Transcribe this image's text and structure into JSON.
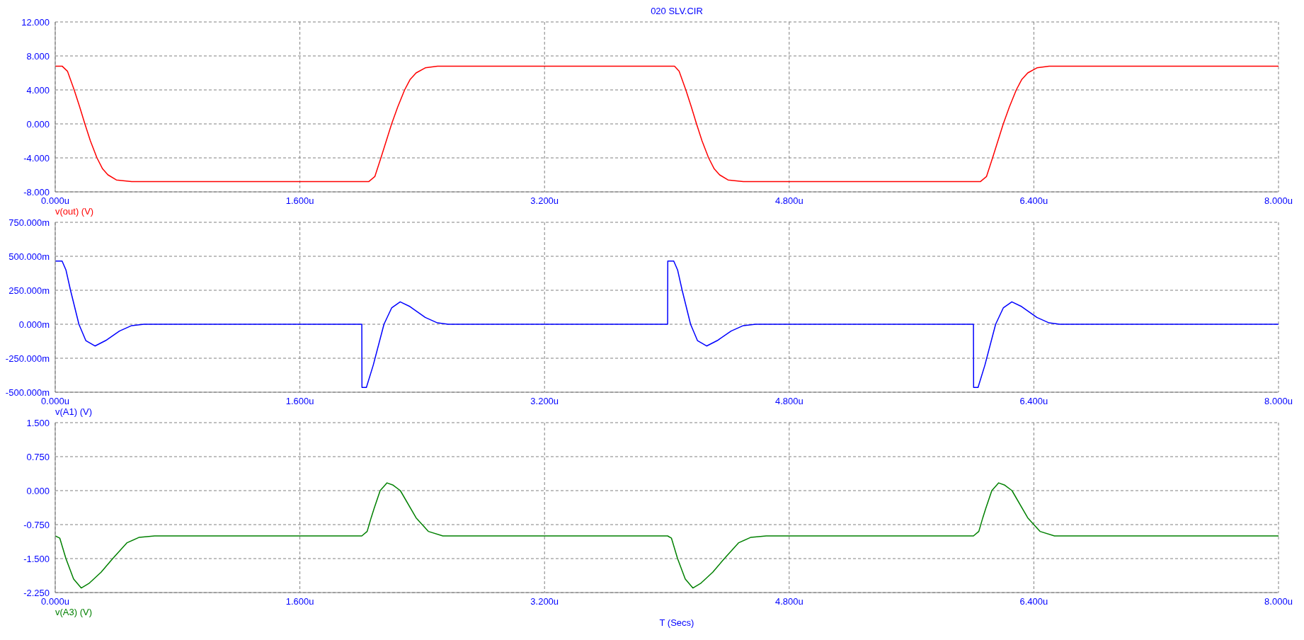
{
  "chart_data": [
    {
      "type": "line",
      "title": "020 SLV.CIR",
      "grid": true,
      "legend": "bottom left",
      "xlim": [
        0,
        8
      ],
      "xticks": [
        {
          "value": 0,
          "label": "0.000u"
        },
        {
          "value": 1.6,
          "label": "1.600u"
        },
        {
          "value": 3.2,
          "label": "3.200u"
        },
        {
          "value": 4.8,
          "label": "4.800u"
        },
        {
          "value": 6.4,
          "label": "6.400u"
        },
        {
          "value": 8,
          "label": "8.000u"
        }
      ],
      "ylim": [
        -8,
        12
      ],
      "yticks": [
        {
          "value": -8,
          "label": "-8.000"
        },
        {
          "value": -4,
          "label": "-4.000"
        },
        {
          "value": 0,
          "label": "0.000"
        },
        {
          "value": 4,
          "label": "4.000"
        },
        {
          "value": 8,
          "label": "8.000"
        },
        {
          "value": 12,
          "label": "12.000"
        }
      ],
      "series": [
        {
          "name": "v(out) (V)",
          "color": "#ff0000",
          "x": [
            0,
            0.045,
            0.08,
            0.124,
            0.16,
            0.194,
            0.23,
            0.273,
            0.31,
            0.345,
            0.4,
            0.5,
            2.05,
            2.09,
            2.13,
            2.165,
            2.2,
            2.24,
            2.285,
            2.32,
            2.36,
            2.42,
            2.5,
            4.05,
            4.08,
            4.124,
            4.16,
            4.194,
            4.23,
            4.273,
            4.31,
            4.345,
            4.4,
            4.5,
            6.05,
            6.09,
            6.13,
            6.165,
            6.2,
            6.24,
            6.285,
            6.32,
            6.36,
            6.42,
            6.5,
            8
          ],
          "values": [
            6.8,
            6.8,
            6.2,
            4,
            2,
            0,
            -2,
            -4,
            -5.3,
            -6,
            -6.6,
            -6.8,
            -6.8,
            -6.2,
            -4,
            -2,
            0,
            2,
            4,
            5.2,
            6,
            6.6,
            6.8,
            6.8,
            6.2,
            4,
            2,
            0,
            -2,
            -4,
            -5.3,
            -6,
            -6.6,
            -6.8,
            -6.8,
            -6.2,
            -4,
            -2,
            0,
            2,
            4,
            5.2,
            6,
            6.6,
            6.8,
            6.8
          ]
        }
      ]
    },
    {
      "type": "line",
      "grid": true,
      "legend": "bottom left",
      "xlim": [
        0,
        8
      ],
      "xticks": [
        {
          "value": 0,
          "label": "0.000u"
        },
        {
          "value": 1.6,
          "label": "1.600u"
        },
        {
          "value": 3.2,
          "label": "3.200u"
        },
        {
          "value": 4.8,
          "label": "4.800u"
        },
        {
          "value": 6.4,
          "label": "6.400u"
        },
        {
          "value": 8,
          "label": "8.000u"
        }
      ],
      "ylim": [
        -500,
        750
      ],
      "yticks": [
        {
          "value": -500,
          "label": "-500.000m"
        },
        {
          "value": -250,
          "label": "-250.000m"
        },
        {
          "value": 0,
          "label": "0.000m"
        },
        {
          "value": 250,
          "label": "250.000m"
        },
        {
          "value": 500,
          "label": "500.000m"
        },
        {
          "value": 750,
          "label": "750.000m"
        }
      ],
      "series": [
        {
          "name": "v(A1) (V)",
          "color": "#0000ff",
          "x": [
            0,
            0.045,
            0.07,
            0.1,
            0.155,
            0.2,
            0.26,
            0.33,
            0.42,
            0.5,
            0.58,
            2.005,
            2.006,
            2.035,
            2.08,
            2.15,
            2.2,
            2.256,
            2.32,
            2.42,
            2.5,
            2.57,
            4.005,
            4.006,
            4.045,
            4.07,
            4.1,
            4.155,
            4.2,
            4.26,
            4.33,
            4.42,
            4.5,
            4.58,
            6.005,
            6.006,
            6.035,
            6.08,
            6.15,
            6.2,
            6.256,
            6.32,
            6.42,
            6.5,
            6.57,
            8
          ],
          "values": [
            465,
            465,
            400,
            250,
            0,
            -120,
            -160,
            -120,
            -50,
            -10,
            0,
            0,
            -465,
            -465,
            -300,
            0,
            120,
            165,
            130,
            50,
            10,
            0,
            0,
            465,
            465,
            400,
            250,
            0,
            -120,
            -160,
            -120,
            -50,
            -10,
            0,
            0,
            -465,
            -465,
            -300,
            0,
            120,
            165,
            130,
            50,
            10,
            0,
            0
          ]
        }
      ]
    },
    {
      "type": "line",
      "xlabel": "T (Secs)",
      "grid": true,
      "legend": "bottom left",
      "xlim": [
        0,
        8
      ],
      "xticks": [
        {
          "value": 0,
          "label": "0.000u"
        },
        {
          "value": 1.6,
          "label": "1.600u"
        },
        {
          "value": 3.2,
          "label": "3.200u"
        },
        {
          "value": 4.8,
          "label": "4.800u"
        },
        {
          "value": 6.4,
          "label": "6.400u"
        },
        {
          "value": 8,
          "label": "8.000u"
        }
      ],
      "ylim": [
        -2.25,
        1.5
      ],
      "yticks": [
        {
          "value": -2.25,
          "label": "-2.250"
        },
        {
          "value": -1.5,
          "label": "-1.500"
        },
        {
          "value": -0.75,
          "label": "-0.750"
        },
        {
          "value": 0,
          "label": "0.000"
        },
        {
          "value": 0.75,
          "label": "0.750"
        },
        {
          "value": 1.5,
          "label": "1.500"
        }
      ],
      "series": [
        {
          "name": "v(A3) (V)",
          "color": "#008000",
          "x": [
            0,
            0.03,
            0.07,
            0.12,
            0.17,
            0.22,
            0.3,
            0.376,
            0.47,
            0.55,
            0.65,
            2.005,
            2.04,
            2.066,
            2.085,
            2.125,
            2.17,
            2.21,
            2.257,
            2.36,
            2.44,
            2.535,
            4.005,
            4.03,
            4.07,
            4.12,
            4.17,
            4.22,
            4.3,
            4.376,
            4.47,
            4.55,
            4.65,
            6.005,
            6.04,
            6.066,
            6.085,
            6.125,
            6.17,
            6.21,
            6.257,
            6.36,
            6.44,
            6.535,
            8
          ],
          "values": [
            -1,
            -1.05,
            -1.5,
            -1.95,
            -2.15,
            -2.05,
            -1.8,
            -1.5,
            -1.15,
            -1.03,
            -1,
            -1,
            -0.9,
            -0.6,
            -0.4,
            0,
            0.17,
            0.12,
            0,
            -0.6,
            -0.9,
            -1,
            -1,
            -1.05,
            -1.5,
            -1.95,
            -2.15,
            -2.05,
            -1.8,
            -1.5,
            -1.15,
            -1.03,
            -1,
            -1,
            -0.9,
            -0.6,
            -0.4,
            0,
            0.17,
            0.12,
            0,
            -0.6,
            -0.9,
            -1,
            -1
          ]
        }
      ]
    }
  ]
}
